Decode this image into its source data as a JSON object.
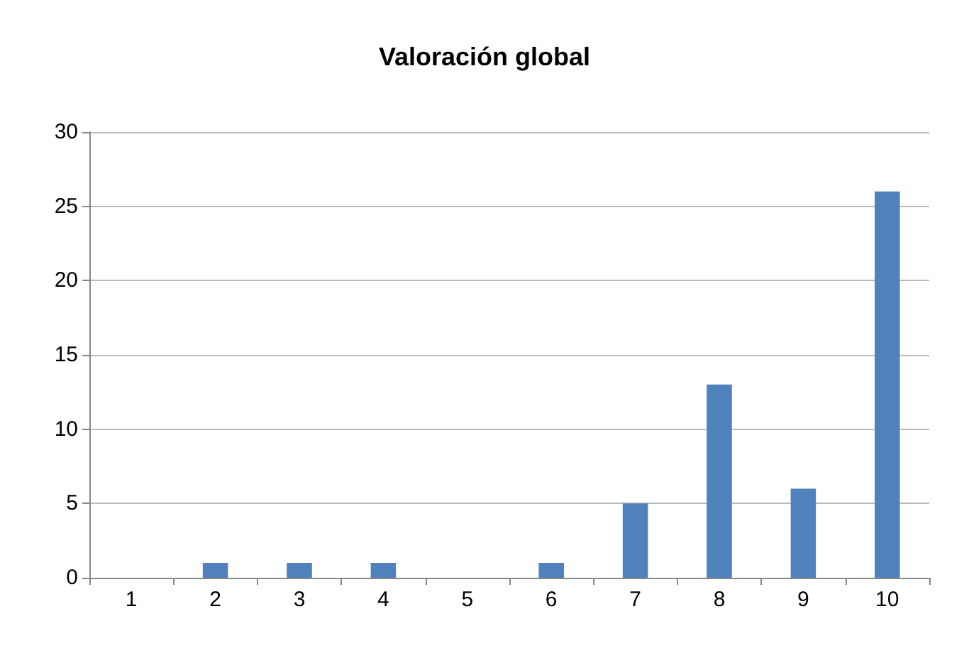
{
  "chart_data": {
    "type": "bar",
    "title": "Valoración global",
    "categories": [
      "1",
      "2",
      "3",
      "4",
      "5",
      "6",
      "7",
      "8",
      "9",
      "10"
    ],
    "values": [
      0,
      1,
      1,
      1,
      0,
      1,
      5,
      13,
      6,
      26
    ],
    "color": "#4f81bd",
    "ylim": [
      0,
      30
    ],
    "yticks": [
      0,
      5,
      10,
      15,
      20,
      25,
      30
    ],
    "grid": "y"
  }
}
